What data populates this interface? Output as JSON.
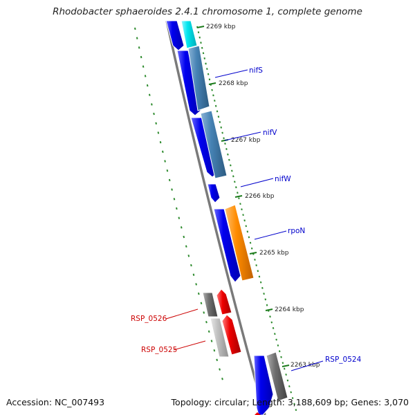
{
  "title": "Rhodobacter sphaeroides 2.4.1 chromosome 1, complete genome",
  "footer": {
    "accession_label": "Accession:",
    "accession": "NC_007493",
    "topology_label": "Topology:",
    "topology": "circular",
    "length_label": "Length:",
    "length": "3,188,609 bp",
    "genes_label": "Genes:",
    "genes": "3,070"
  },
  "ticks": [
    {
      "kbp": 2269,
      "label": "2269 kbp"
    },
    {
      "kbp": 2268,
      "label": "2268 kbp"
    },
    {
      "kbp": 2267,
      "label": "2267 kbp"
    },
    {
      "kbp": 2266,
      "label": "2266 kbp"
    },
    {
      "kbp": 2265,
      "label": "2265 kbp"
    },
    {
      "kbp": 2264,
      "label": "2264 kbp"
    },
    {
      "kbp": 2263,
      "label": "2263 kbp"
    }
  ],
  "gene_labels": [
    {
      "text": "nifS",
      "color": "#0000cc"
    },
    {
      "text": "nifV",
      "color": "#0000cc"
    },
    {
      "text": "nifW",
      "color": "#0000cc"
    },
    {
      "text": "rpoN",
      "color": "#0000cc"
    },
    {
      "text": "RSP_0526",
      "color": "#cc0000"
    },
    {
      "text": "RSP_0525",
      "color": "#cc0000"
    },
    {
      "text": "RSP_0524",
      "color": "#0000cc"
    }
  ],
  "colors": {
    "backbone": "#777777",
    "gc_skew_dots": "#2e8b2e",
    "cds": "#0000ee",
    "cds_cyan": "#00e5ee",
    "cds_steelblue": "#4682b4",
    "cds_orange": "#ff8c00",
    "cds_red": "#ee0000",
    "cds_gray": "#707070",
    "cds_lightgray": "#bbbbbb"
  }
}
